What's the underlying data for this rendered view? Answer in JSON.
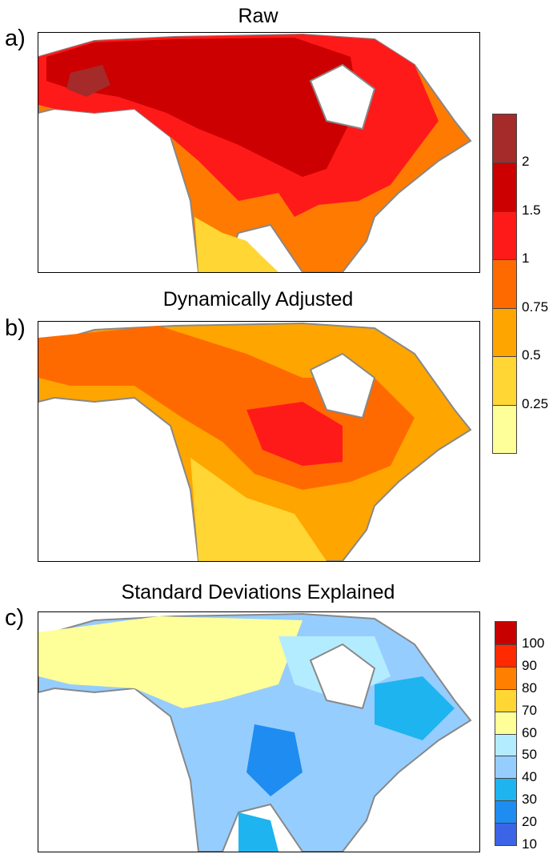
{
  "panels": [
    {
      "label": "a)",
      "title": "Raw"
    },
    {
      "label": "b)",
      "title": "Dynamically Adjusted"
    },
    {
      "label": "c)",
      "title": "Standard Deviations Explained"
    }
  ],
  "colorbar_temp": {
    "ticks": [
      "2",
      "1.5",
      "1",
      "0.75",
      "0.5",
      "0.25"
    ],
    "colors": [
      "#a52a2a",
      "#cc0000",
      "#ff1a1a",
      "#ff6a00",
      "#ffa500",
      "#ffd633",
      "#ffff99"
    ]
  },
  "colorbar_pct": {
    "ticks": [
      "100",
      "90",
      "80",
      "70",
      "60",
      "50",
      "40",
      "30",
      "20",
      "10"
    ],
    "colors": [
      "#c80000",
      "#ff2a00",
      "#ff8000",
      "#ffd633",
      "#ffff99",
      "#b4ecff",
      "#96cdff",
      "#1eb4f0",
      "#1e8cf0",
      "#3c64e6"
    ]
  }
}
